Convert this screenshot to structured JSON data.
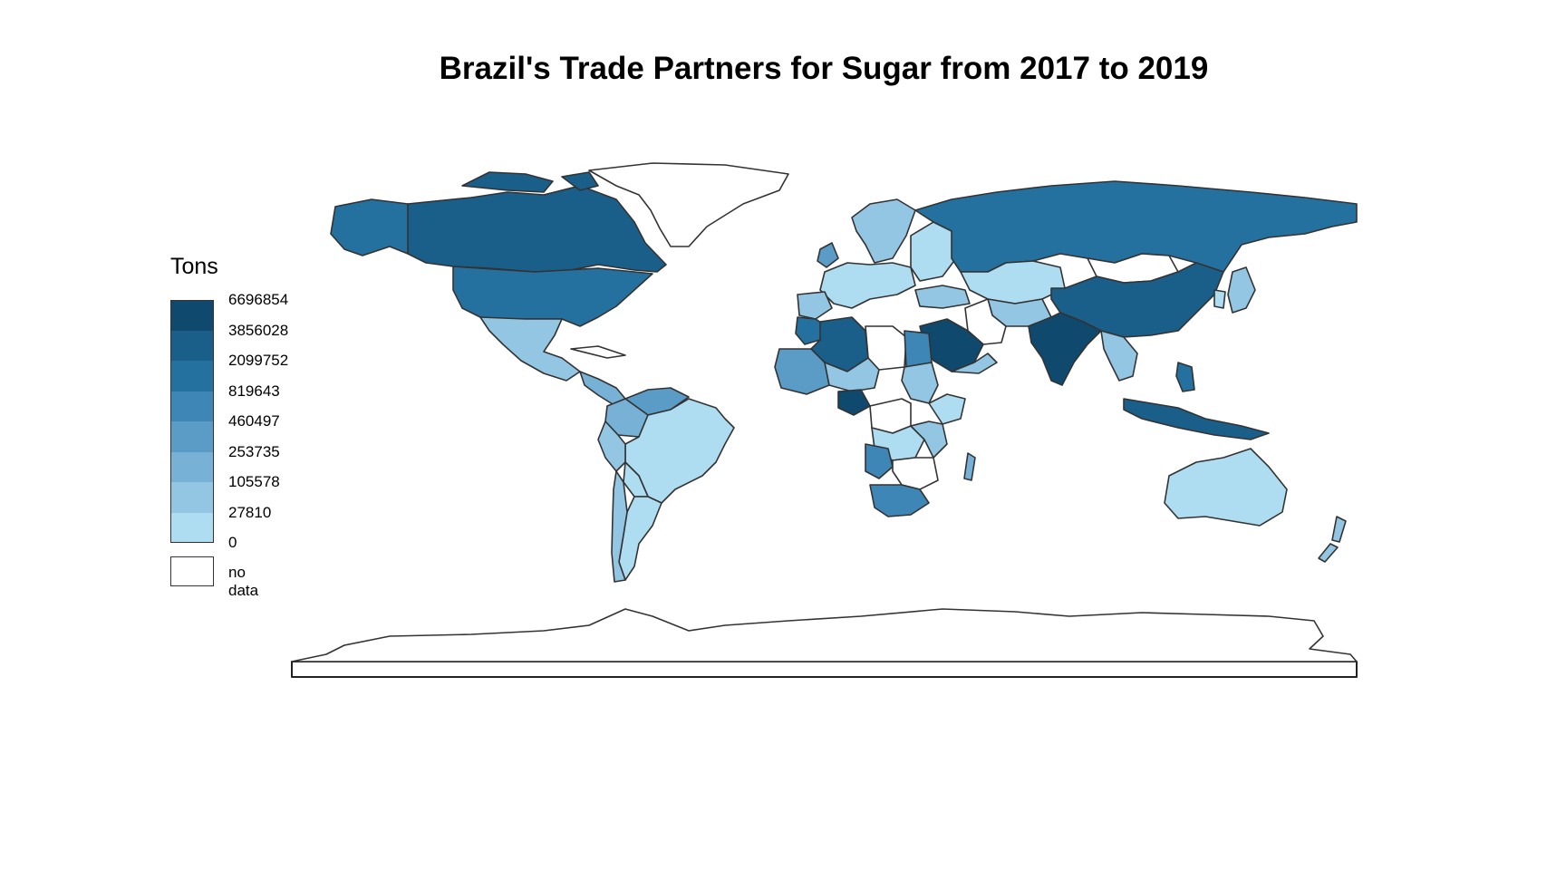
{
  "title": "Brazil's Trade Partners for Sugar from 2017 to 2019",
  "legend": {
    "title": "Tons",
    "breaks": [
      "6696854",
      "3856028",
      "2099752",
      "819643",
      "460497",
      "253735",
      "105578",
      "27810",
      "0"
    ],
    "colors": [
      "#0f4a6e",
      "#1a5f8a",
      "#2471a0",
      "#3d86b5",
      "#5a9cc6",
      "#77b1d6",
      "#93c6e3",
      "#aedcf0"
    ],
    "no_data_label": "no data",
    "no_data_color": "#ffffff"
  },
  "colors": {
    "border": "#333333",
    "frame": "#222222"
  }
}
